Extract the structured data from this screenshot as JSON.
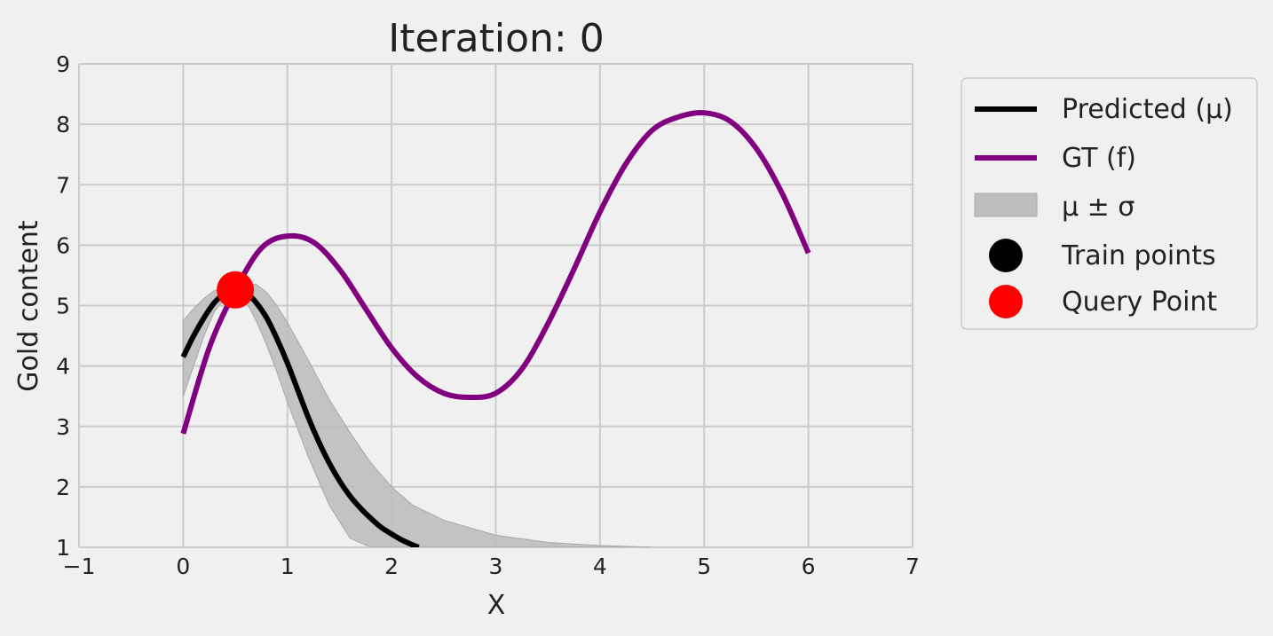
{
  "chart_data": {
    "type": "line",
    "title": "Iteration: 0",
    "xlabel": "X",
    "ylabel": "Gold content",
    "xlim": [
      -1,
      7
    ],
    "ylim": [
      1,
      9
    ],
    "xticks": [
      -1,
      0,
      1,
      2,
      3,
      4,
      5,
      6,
      7
    ],
    "yticks": [
      1,
      2,
      3,
      4,
      5,
      6,
      7,
      8,
      9
    ],
    "xtick_labels": [
      "−1",
      "0",
      "1",
      "2",
      "3",
      "4",
      "5",
      "6",
      "7"
    ],
    "ytick_labels": [
      "1",
      "2",
      "3",
      "4",
      "5",
      "6",
      "7",
      "8",
      "9"
    ],
    "grid": true,
    "legend_position": "outside-right",
    "legend": {
      "predicted": "Predicted (μ)",
      "gt": "GT (f)",
      "band": "μ ± σ",
      "train": "Train points",
      "query": "Query Point"
    },
    "series": {
      "gt": {
        "name": "GT (f)",
        "color": "#800080",
        "x": [
          0,
          0.25,
          0.5,
          0.75,
          1.0,
          1.25,
          1.5,
          1.75,
          2.0,
          2.25,
          2.5,
          2.75,
          3.0,
          3.25,
          3.5,
          3.75,
          4.0,
          4.25,
          4.5,
          4.75,
          5.0,
          5.25,
          5.5,
          5.75,
          6.0
        ],
        "y": [
          2.88,
          4.3,
          5.25,
          5.95,
          6.15,
          6.05,
          5.6,
          4.95,
          4.3,
          3.82,
          3.55,
          3.48,
          3.55,
          3.95,
          4.7,
          5.6,
          6.55,
          7.35,
          7.9,
          8.12,
          8.19,
          8.05,
          7.6,
          6.85,
          5.87
        ]
      },
      "predicted": {
        "name": "Predicted (μ)",
        "color": "#000000",
        "x": [
          0,
          0.1,
          0.2,
          0.3,
          0.4,
          0.5,
          0.6,
          0.7,
          0.8,
          0.9,
          1.0,
          1.1,
          1.2,
          1.3,
          1.4,
          1.5,
          1.6,
          1.7,
          1.8,
          1.9,
          2.0,
          2.1,
          2.2,
          2.26
        ],
        "y": [
          4.15,
          4.5,
          4.8,
          5.05,
          5.2,
          5.26,
          5.22,
          5.05,
          4.8,
          4.45,
          4.05,
          3.6,
          3.15,
          2.75,
          2.4,
          2.1,
          1.85,
          1.65,
          1.48,
          1.33,
          1.22,
          1.12,
          1.04,
          1.0
        ]
      },
      "band": {
        "name": "μ ± σ",
        "color": "#bebebe",
        "x": [
          0,
          0.1,
          0.2,
          0.3,
          0.4,
          0.5,
          0.6,
          0.7,
          0.8,
          0.9,
          1.0,
          1.2,
          1.4,
          1.6,
          1.8,
          2.0,
          2.2,
          2.5,
          3.0,
          3.5,
          4.0,
          4.5
        ],
        "upper": [
          4.75,
          4.95,
          5.12,
          5.25,
          5.3,
          5.3,
          5.35,
          5.35,
          5.22,
          5.0,
          4.72,
          4.1,
          3.45,
          2.9,
          2.4,
          2.0,
          1.7,
          1.45,
          1.2,
          1.08,
          1.03,
          1.0
        ],
        "lower": [
          3.5,
          4.0,
          4.5,
          4.9,
          5.12,
          5.25,
          5.08,
          4.75,
          4.35,
          3.9,
          3.4,
          2.5,
          1.7,
          1.15,
          1.0,
          1.0,
          1.0,
          1.0,
          1.0,
          1.0,
          1.0,
          1.0
        ]
      },
      "query": {
        "name": "Query Point",
        "color": "#ff0000",
        "x": [
          0.5
        ],
        "y": [
          5.26
        ]
      },
      "train": {
        "name": "Train points",
        "color": "#000000",
        "x": [],
        "y": []
      }
    }
  }
}
